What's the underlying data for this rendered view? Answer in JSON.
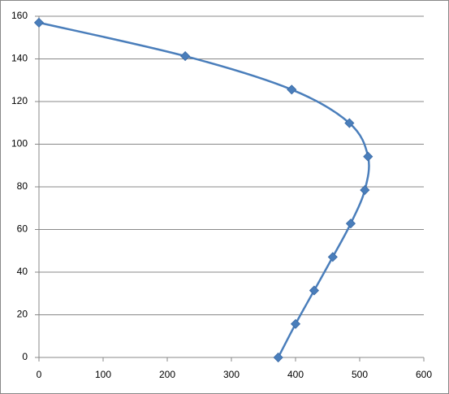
{
  "chart_data": {
    "type": "scatter-smooth",
    "x": [
      0,
      228,
      394,
      484,
      513,
      508,
      486,
      458,
      429,
      400,
      373
    ],
    "series": [
      {
        "color": "#4a7ebb",
        "values": [
          157,
          141.3,
          125.6,
          109.9,
          94.2,
          78.5,
          62.8,
          47.1,
          31.4,
          15.7,
          0
        ]
      }
    ],
    "xlim": [
      0,
      600
    ],
    "xticks": [
      0,
      100,
      200,
      300,
      400,
      500,
      600
    ],
    "ylim": [
      0,
      160
    ],
    "yticks": [
      0,
      20,
      40,
      60,
      80,
      100,
      120,
      140,
      160
    ],
    "grid": true
  }
}
